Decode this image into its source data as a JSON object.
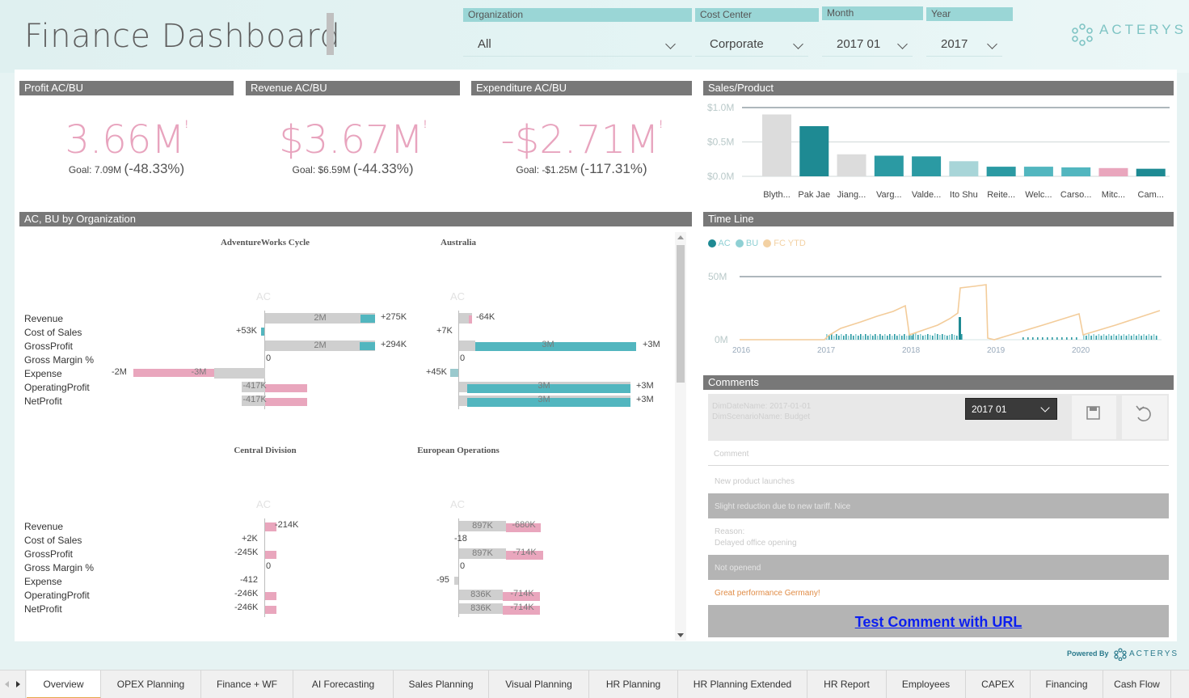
{
  "header": {
    "title": "Finance Dashboard"
  },
  "slicers": {
    "organization": {
      "label": "Organization",
      "value": "All"
    },
    "cost_center": {
      "label": "Cost Center",
      "value": "Corporate"
    },
    "month": {
      "label": "Month",
      "value": "2017 01"
    },
    "year": {
      "label": "Year",
      "value": "2017"
    }
  },
  "logo": {
    "text": "ACTERYS",
    "powered_by": "Powered By",
    "powered_logo": "ACTERYS"
  },
  "kpis": [
    {
      "title": "Profit AC/BU",
      "value": "3.66M",
      "mark": "!",
      "goal_label": "Goal: 7.09M",
      "goal_delta": "(-48.33%)"
    },
    {
      "title": "Revenue AC/BU",
      "value": "$3.67M",
      "mark": "!",
      "goal_label": "Goal: $6.59M",
      "goal_delta": "(-44.33%)"
    },
    {
      "title": "Expenditure AC/BU",
      "value": "-$2.71M",
      "mark": "!",
      "goal_label": "Goal: -$1.25M",
      "goal_delta": "(-117.31%)"
    }
  ],
  "sales_product": {
    "title": "Sales/Product",
    "chart_data": {
      "type": "bar",
      "categories": [
        "Blyth...",
        "Pak Jae",
        "Jiang...",
        "Varg...",
        "Valde...",
        "Ito Shu",
        "Reite...",
        "Welc...",
        "Carso...",
        "Mitc...",
        "Cam..."
      ],
      "values": [
        0.9,
        0.73,
        0.32,
        0.3,
        0.29,
        0.22,
        0.14,
        0.14,
        0.13,
        0.12,
        0.11
      ],
      "colors": [
        "#dcdcdc",
        "#1e8a93",
        "#dcdcdc",
        "#2b9aa3",
        "#2b9aa3",
        "#a8d5d8",
        "#2b9aa3",
        "#52b6bf",
        "#52b6bf",
        "#e9a6bd",
        "#1e8a93"
      ],
      "y_ticks": [
        "$1.0M",
        "$0.5M",
        "$0.0M"
      ],
      "ylim": [
        0,
        1.0
      ]
    }
  },
  "org_section": {
    "title": "AC, BU by Organization",
    "ac_label": "AC",
    "row_labels": [
      "Revenue",
      "Cost of Sales",
      "GrossProfit",
      "Gross Margin %",
      "Expense",
      "OperatingProfit",
      "NetProfit"
    ],
    "orgs": [
      {
        "name": "AdventureWorks Cycle"
      },
      {
        "name": "Australia"
      },
      {
        "name": "Central Division"
      },
      {
        "name": "European Operations"
      }
    ],
    "aw": {
      "revenue_in": "2M",
      "revenue_delta": "+275K",
      "cos_val": "+53K",
      "gp_in": "2M",
      "gp_delta": "+294K",
      "gm_val": "0",
      "exp_left": "-2M",
      "exp_in": "-3M",
      "op_in": "-417K",
      "np_in": "-417K"
    },
    "au": {
      "revenue_delta": "-64K",
      "cos_val": "+7K",
      "gp_in": "3M",
      "gp_delta": "+3M",
      "gm_val": "0",
      "exp_val": "+45K",
      "op_in": "3M",
      "op_delta": "+3M",
      "np_in": "3M",
      "np_delta": "+3M"
    },
    "cd": {
      "revenue_delta": "-214K",
      "cos_val": "+2K",
      "gp_val": "-245K",
      "gm_val": "0",
      "exp_val": "-412",
      "op_val": "-246K",
      "np_val": "-246K"
    },
    "eu": {
      "revenue_in": "897K",
      "revenue_delta": "-680K",
      "cos_val": "-18",
      "gp_in": "897K",
      "gp_delta": "-714K",
      "gm_val": "0",
      "exp_val": "-95",
      "op_in": "836K",
      "op_delta": "-714K",
      "np_in": "836K",
      "np_delta": "-714K"
    }
  },
  "timeline": {
    "title": "Time Line",
    "legend": [
      {
        "label": "AC",
        "color": "#1e8a93"
      },
      {
        "label": "BU",
        "color": "#8fd0d4"
      },
      {
        "label": "FC YTD",
        "color": "#f3d1a3"
      }
    ],
    "y_ticks": [
      "50M",
      "0M"
    ],
    "x_ticks": [
      "2016",
      "2017",
      "2018",
      "2019",
      "2020"
    ]
  },
  "comments": {
    "title": "Comments",
    "meta_line1": "DimDateName: 2017-01-01",
    "meta_line2": "DimScenarioName: Budget",
    "month_select": "2017 01",
    "comment_placeholder": "Comment",
    "items": [
      "New product launches",
      "Slight reduction due to new tariff. Nice",
      "Reason:",
      "Delayed office opening",
      "Not openend",
      "Great performance Germany!"
    ],
    "link_text": "Test Comment with URL"
  },
  "tabs": [
    "Overview",
    "OPEX Planning",
    "Finance + WF",
    "AI Forecasting",
    "Sales Planning",
    "Visual Planning",
    "HR Planning",
    "HR Planning Extended",
    "HR Report",
    "Employees",
    "CAPEX",
    "Financing",
    "Cash Flow"
  ]
}
